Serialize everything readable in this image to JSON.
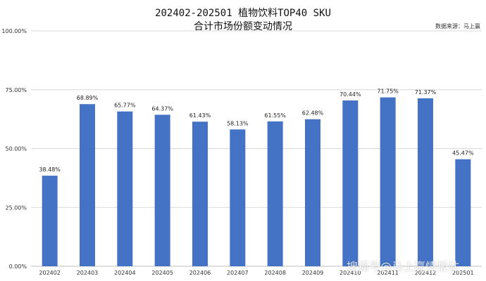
{
  "chart_data": {
    "type": "bar",
    "title": "202402-202501 植物饮料TOP40 SKU",
    "subtitle": "合计市场份额变动情况",
    "source": "数据来源：马上赢",
    "categories": [
      "202402",
      "202403",
      "202404",
      "202405",
      "202406",
      "202407",
      "202408",
      "202409",
      "202410",
      "202411",
      "202412",
      "202501"
    ],
    "values": [
      38.48,
      68.89,
      65.77,
      64.37,
      61.43,
      58.13,
      61.55,
      62.48,
      70.44,
      71.75,
      71.37,
      45.47
    ],
    "value_labels": [
      "38.48%",
      "68.89%",
      "65.77%",
      "64.37%",
      "61.43%",
      "58.13%",
      "61.55%",
      "62.48%",
      "70.44%",
      "71.75%",
      "71.37%",
      "45.47%"
    ],
    "ylim": [
      0,
      100
    ],
    "yticks": [
      0,
      25,
      50,
      75,
      100
    ],
    "ytick_labels": [
      "0.00%",
      "25.00%",
      "50.00%",
      "75.00%",
      "100.00%"
    ],
    "grid": true,
    "bar_color": "#4472C4"
  },
  "watermark": "搜狐号@马上赢情报站"
}
